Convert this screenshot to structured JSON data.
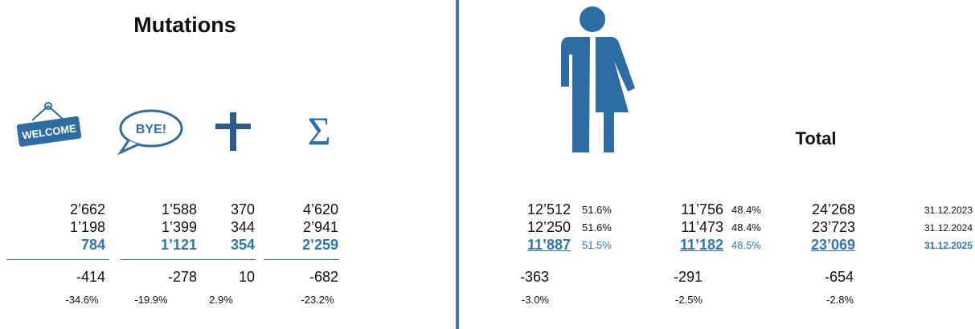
{
  "mutations": {
    "title": "Mutations",
    "icons": {
      "welcome": "WELCOME",
      "bye": "BYE!",
      "sum": "Σ"
    },
    "rows": [
      [
        "2’662",
        "1’588",
        "370",
        "4’620"
      ],
      [
        "1’198",
        "1’399",
        "344",
        "2’941"
      ],
      [
        "784",
        "1’121",
        "354",
        "2’259"
      ]
    ],
    "change": [
      "-414",
      "-278",
      "10",
      "-682"
    ],
    "change_pct": [
      "-34.6%",
      "-19.9%",
      "2.9%",
      "-23.2%"
    ]
  },
  "total": {
    "title": "Total",
    "rows": [
      [
        "12’512",
        "51.6%",
        "11’756",
        "48.4%",
        "24’268",
        "31.12.2023"
      ],
      [
        "12’250",
        "51.6%",
        "11’473",
        "48.4%",
        "23’723",
        "31.12.2024"
      ],
      [
        "11’887",
        "51.5%",
        "11’182",
        "48.5%",
        "23’069",
        "31.12.2025"
      ]
    ],
    "change": [
      "-363",
      "-291",
      "-654"
    ],
    "change_pct": [
      "-3.0%",
      "-2.5%",
      "-2.8%"
    ]
  }
}
